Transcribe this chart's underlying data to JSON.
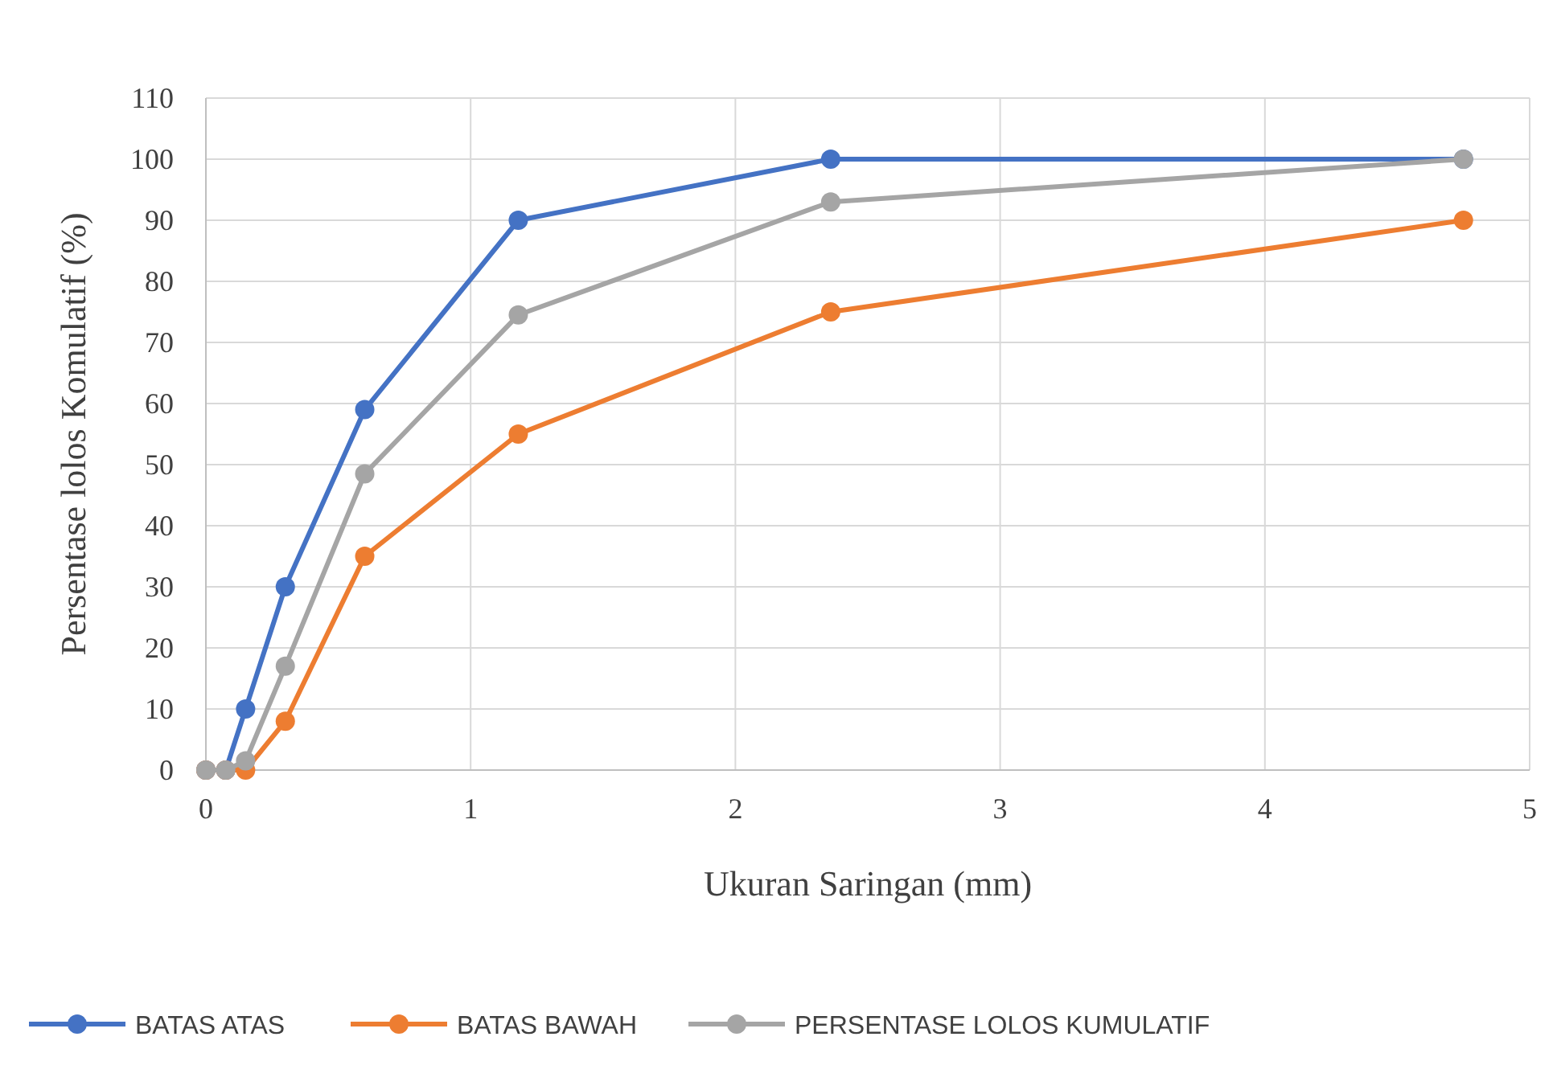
{
  "chart_data": {
    "type": "line",
    "xlabel": "Ukuran Saringan (mm)",
    "ylabel": "Persentase lolos Komulatif (%)",
    "x": [
      0,
      0.075,
      0.15,
      0.3,
      0.6,
      1.18,
      2.36,
      4.75
    ],
    "series": [
      {
        "name": "BATAS ATAS",
        "color": "#4472c4",
        "values": [
          0,
          0,
          10,
          30,
          59,
          90,
          100,
          100
        ]
      },
      {
        "name": "BATAS BAWAH",
        "color": "#ed7d31",
        "values": [
          0,
          0,
          0,
          8,
          35,
          55,
          75,
          90
        ]
      },
      {
        "name": "PERSENTASE LOLOS KUMULATIF",
        "color": "#a5a5a5",
        "values": [
          0,
          0,
          1.5,
          17,
          48.5,
          74.5,
          93,
          100
        ]
      }
    ],
    "xlim": [
      0,
      5
    ],
    "xticks": [
      0,
      1,
      2,
      3,
      4,
      5
    ],
    "ylim": [
      0,
      110
    ],
    "yticks": [
      0,
      10,
      20,
      30,
      40,
      50,
      60,
      70,
      80,
      90,
      100,
      110
    ],
    "grid": true,
    "legend": "bottom",
    "marker": "circle",
    "line_style": "solid"
  }
}
